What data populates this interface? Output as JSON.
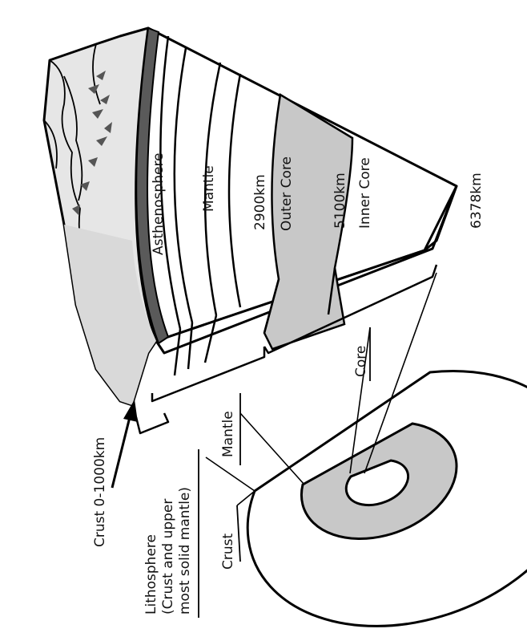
{
  "labels": {
    "asthenosphere": "Asthenosphere",
    "mantle_top": "Mantle",
    "depth_2900": "2900km",
    "outer_core": "Outer Core",
    "depth_5100": "5100km",
    "inner_core": "Inner Core",
    "depth_6378": "6378km",
    "core": "Core",
    "mantle_bottom": "Mantle",
    "crust": "Crust",
    "crust_depth": "Crust 0-1000km",
    "lithosphere_line1": "Lithosphere",
    "lithosphere_line2": "(Crust and upper",
    "lithosphere_line3": "most solid mantle)"
  },
  "colors": {
    "outline": "#000000",
    "core_fill": "#c8c8c8",
    "crust_fill": "#5a5a5a",
    "surface_fill": "#e6e6e6",
    "background": "#ffffff"
  }
}
